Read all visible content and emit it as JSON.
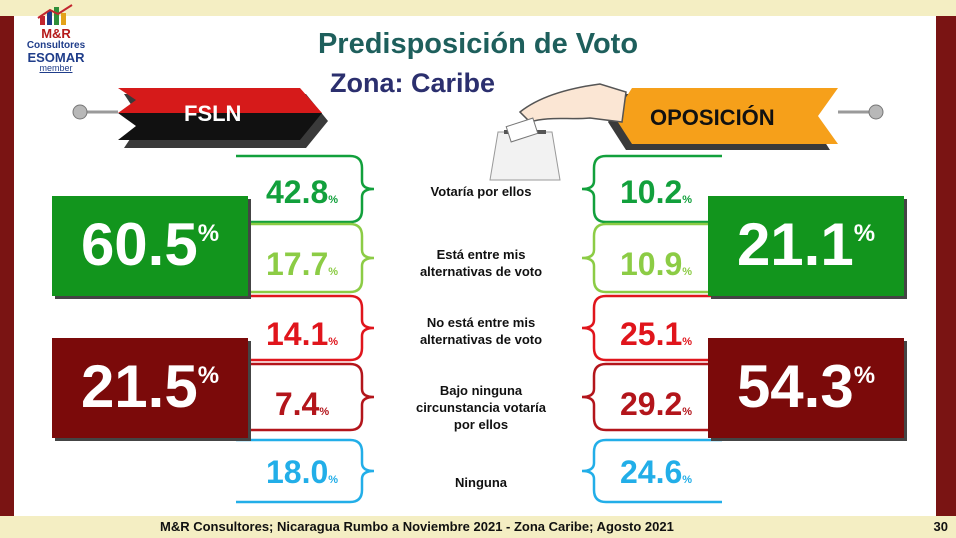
{
  "header": {
    "title": "Predisposición de Voto",
    "subtitle": "Zona: Caribe"
  },
  "logo": {
    "name": "M&R",
    "sub": "Consultores",
    "esomar": "ESOMAR",
    "member": "member"
  },
  "left_label": "FSLN",
  "right_label": "OPOSICIÓN",
  "pct_symbol": "%",
  "chart_data": {
    "type": "table",
    "title": "Predisposición de Voto",
    "subtitle": "Zona: Caribe",
    "columns": [
      "FSLN",
      "OPOSICIÓN"
    ],
    "rows": [
      {
        "label": "Votaría por ellos",
        "FSLN": "42.8",
        "OPOSICIÓN": "10.2"
      },
      {
        "label": "Está entre mis alternativas de voto",
        "FSLN": "17.7",
        "OPOSICIÓN": "10.9"
      },
      {
        "label": "No está entre mis alternativas de voto",
        "FSLN": "14.1",
        "OPOSICIÓN": "25.1"
      },
      {
        "label": "Bajo ninguna circunstancia votaría por ellos",
        "FSLN": "7.4",
        "OPOSICIÓN": "29.2"
      },
      {
        "label": "Ninguna",
        "FSLN": "18.0",
        "OPOSICIÓN": "24.6"
      }
    ],
    "groups": [
      {
        "rows": [
          1,
          2
        ],
        "FSLN": "60.5",
        "OPOSICIÓN": "21.1",
        "color": "#12951d"
      },
      {
        "rows": [
          3,
          4
        ],
        "FSLN": "21.5",
        "OPOSICIÓN": "54.3",
        "color": "#7b0a0a"
      }
    ],
    "row_colors": [
      "#12a03c",
      "#8ccc45",
      "#e0151c",
      "#b3151b",
      "#22aee8"
    ]
  },
  "footer": {
    "source": "M&R Consultores; Nicaragua Rumbo a Noviembre 2021 - Zona Caribe; Agosto 2021",
    "page": "30"
  }
}
